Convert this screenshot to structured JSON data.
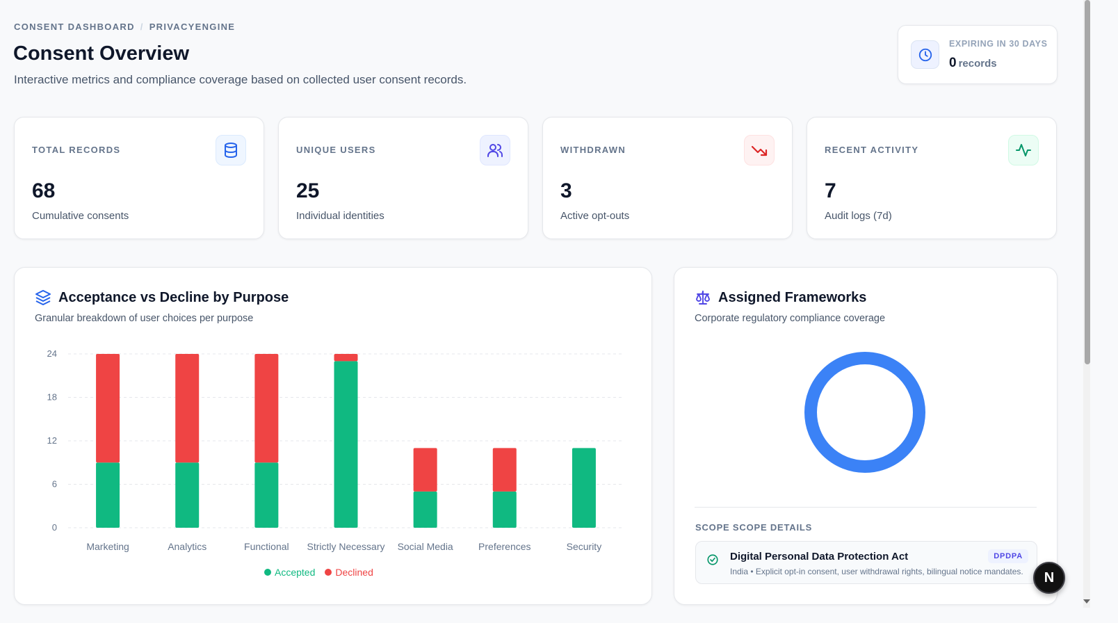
{
  "breadcrumb": {
    "part1": "CONSENT DASHBOARD",
    "separator": "/",
    "part2": "PRIVACYENGINE"
  },
  "header": {
    "title": "Consent Overview",
    "subtitle": "Interactive metrics and compliance coverage based on collected user consent records."
  },
  "expiring": {
    "label": "EXPIRING IN 30 DAYS",
    "value": "0",
    "unit": "records",
    "icon": "clock-icon"
  },
  "stats": [
    {
      "label": "TOTAL RECORDS",
      "value": "68",
      "desc": "Cumulative consents",
      "icon": "database-icon",
      "color": "#2563eb"
    },
    {
      "label": "UNIQUE USERS",
      "value": "25",
      "desc": "Individual identities",
      "icon": "users-icon",
      "color": "#4f46e5"
    },
    {
      "label": "WITHDRAWN",
      "value": "3",
      "desc": "Active opt-outs",
      "icon": "trending-down-icon",
      "color": "#dc2626"
    },
    {
      "label": "RECENT ACTIVITY",
      "value": "7",
      "desc": "Audit logs (7d)",
      "icon": "activity-icon",
      "color": "#059669"
    }
  ],
  "bar_panel": {
    "title": "Acceptance vs Decline by Purpose",
    "subtitle": "Granular breakdown of user choices per purpose",
    "icon": "layers-icon"
  },
  "frameworks_panel": {
    "title": "Assigned Frameworks",
    "subtitle": "Corporate regulatory compliance coverage",
    "icon": "scale-icon",
    "scope_label": "SCOPE SCOPE DETAILS",
    "items": [
      {
        "name": "Digital Personal Data Protection Act",
        "badge": "DPDPA",
        "desc": "India • Explicit opt-in consent, user withdrawal rights, bilingual notice mandates.",
        "icon": "check-circle-icon"
      }
    ]
  },
  "fab": {
    "label": "N"
  },
  "colors": {
    "accepted": "#10b981",
    "declined": "#ef4444",
    "donut": "#3b82f6"
  },
  "chart_data": [
    {
      "type": "bar",
      "stacked": true,
      "categories": [
        "Marketing",
        "Analytics",
        "Functional",
        "Strictly Necessary",
        "Social Media",
        "Preferences",
        "Security"
      ],
      "series": [
        {
          "name": "Accepted",
          "values": [
            9,
            9,
            9,
            23,
            5,
            5,
            11
          ],
          "color": "#10b981"
        },
        {
          "name": "Declined",
          "values": [
            15,
            15,
            15,
            1,
            6,
            6,
            0
          ],
          "color": "#ef4444"
        }
      ],
      "yticks": [
        0,
        6,
        12,
        18,
        24
      ],
      "ylim": [
        0,
        24
      ],
      "grid": true,
      "legend": "bottom"
    },
    {
      "type": "pie",
      "donut": true,
      "slices": [
        {
          "name": "DPDPA",
          "value": 1,
          "color": "#3b82f6"
        }
      ]
    }
  ]
}
